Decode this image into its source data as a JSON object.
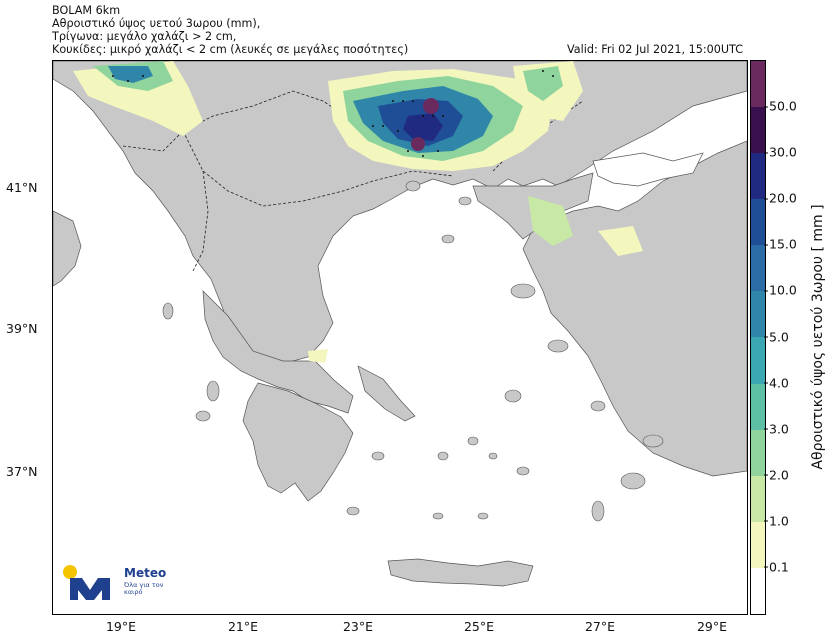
{
  "header": {
    "model": "BOLAM 6km",
    "line2": "Αθροιστικό ύψος υετού 3ωρου (mm),",
    "line3": "Τρίγωνα: μεγάλο χαλάζι > 2 cm,",
    "line4": "Κουκίδες: μικρό χαλάζι < 2 cm (λευκές σε μεγάλες ποσότητες)",
    "valid": "Valid: Fri 02 Jul 2021, 15:00UTC"
  },
  "lat_labels": [
    "41°N",
    "39°N",
    "37°N"
  ],
  "lon_labels": [
    "19°E",
    "21°E",
    "23°E",
    "25°E",
    "27°E",
    "29°E"
  ],
  "colorbar": {
    "title": "Αθροιστικό ύψος υετού 3ωρου [ mm ]",
    "ticks": [
      "50.0",
      "30.0",
      "20.0",
      "15.0",
      "10.0",
      "5.0",
      "4.0",
      "3.0",
      "2.0",
      "1.0",
      "0.1"
    ],
    "colors": [
      "#6b2a5d",
      "#3a0f4d",
      "#1f2a80",
      "#1f4d96",
      "#2b6ca6",
      "#2f86a8",
      "#3ba7b3",
      "#5dbfa3",
      "#8fd49c",
      "#c8e9a6",
      "#f3f7be",
      "#ffffff"
    ]
  },
  "logo": {
    "brand": "Meteo",
    "tagline": "Όλα για τον καιρό"
  }
}
